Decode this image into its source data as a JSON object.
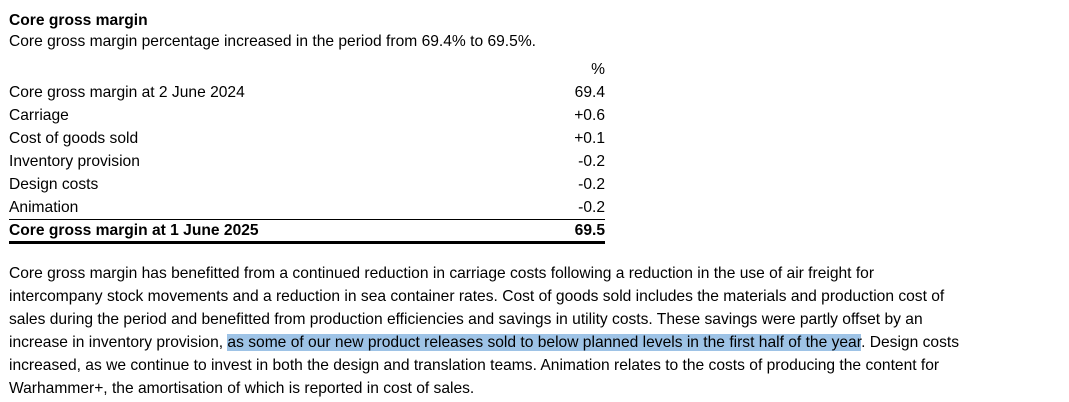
{
  "section": {
    "title": "Core gross margin",
    "intro": "Core gross margin percentage increased in the period from 69.4% to 69.5%."
  },
  "table": {
    "unit_header": "%",
    "rows": [
      {
        "label": "Core gross margin at 2 June 2024",
        "value": "69.4"
      },
      {
        "label": "Carriage",
        "value": "+0.6"
      },
      {
        "label": "Cost of goods sold",
        "value": "+0.1"
      },
      {
        "label": "Inventory provision",
        "value": "-0.2"
      },
      {
        "label": "Design costs",
        "value": "-0.2"
      },
      {
        "label": "Animation",
        "value": "-0.2"
      }
    ],
    "total": {
      "label": "Core gross margin at 1 June 2025",
      "value": "69.5"
    }
  },
  "paragraph": {
    "line1": "Core gross margin has benefitted from a continued reduction in carriage costs following a reduction in the use of air freight for",
    "line2": "intercompany stock movements and a reduction in sea container rates. Cost of goods sold includes the materials and production cost of",
    "line3": "sales during the period and benefitted from production efficiencies and savings in utility costs. These savings were partly offset by an",
    "line4_before": "increase in inventory provision, ",
    "line4_highlight": "as some of our new product releases sold to below planned levels in the first half of the year",
    "line4_after": ". Design costs",
    "line5": "increased, as we continue to invest in both the design and translation teams. Animation relates to the costs of producing the content for",
    "line6": "Warhammer+, the amortisation of which is reported in cost of sales."
  },
  "colors": {
    "highlight": "#9ec3e6",
    "text": "#000000",
    "background": "#ffffff"
  }
}
